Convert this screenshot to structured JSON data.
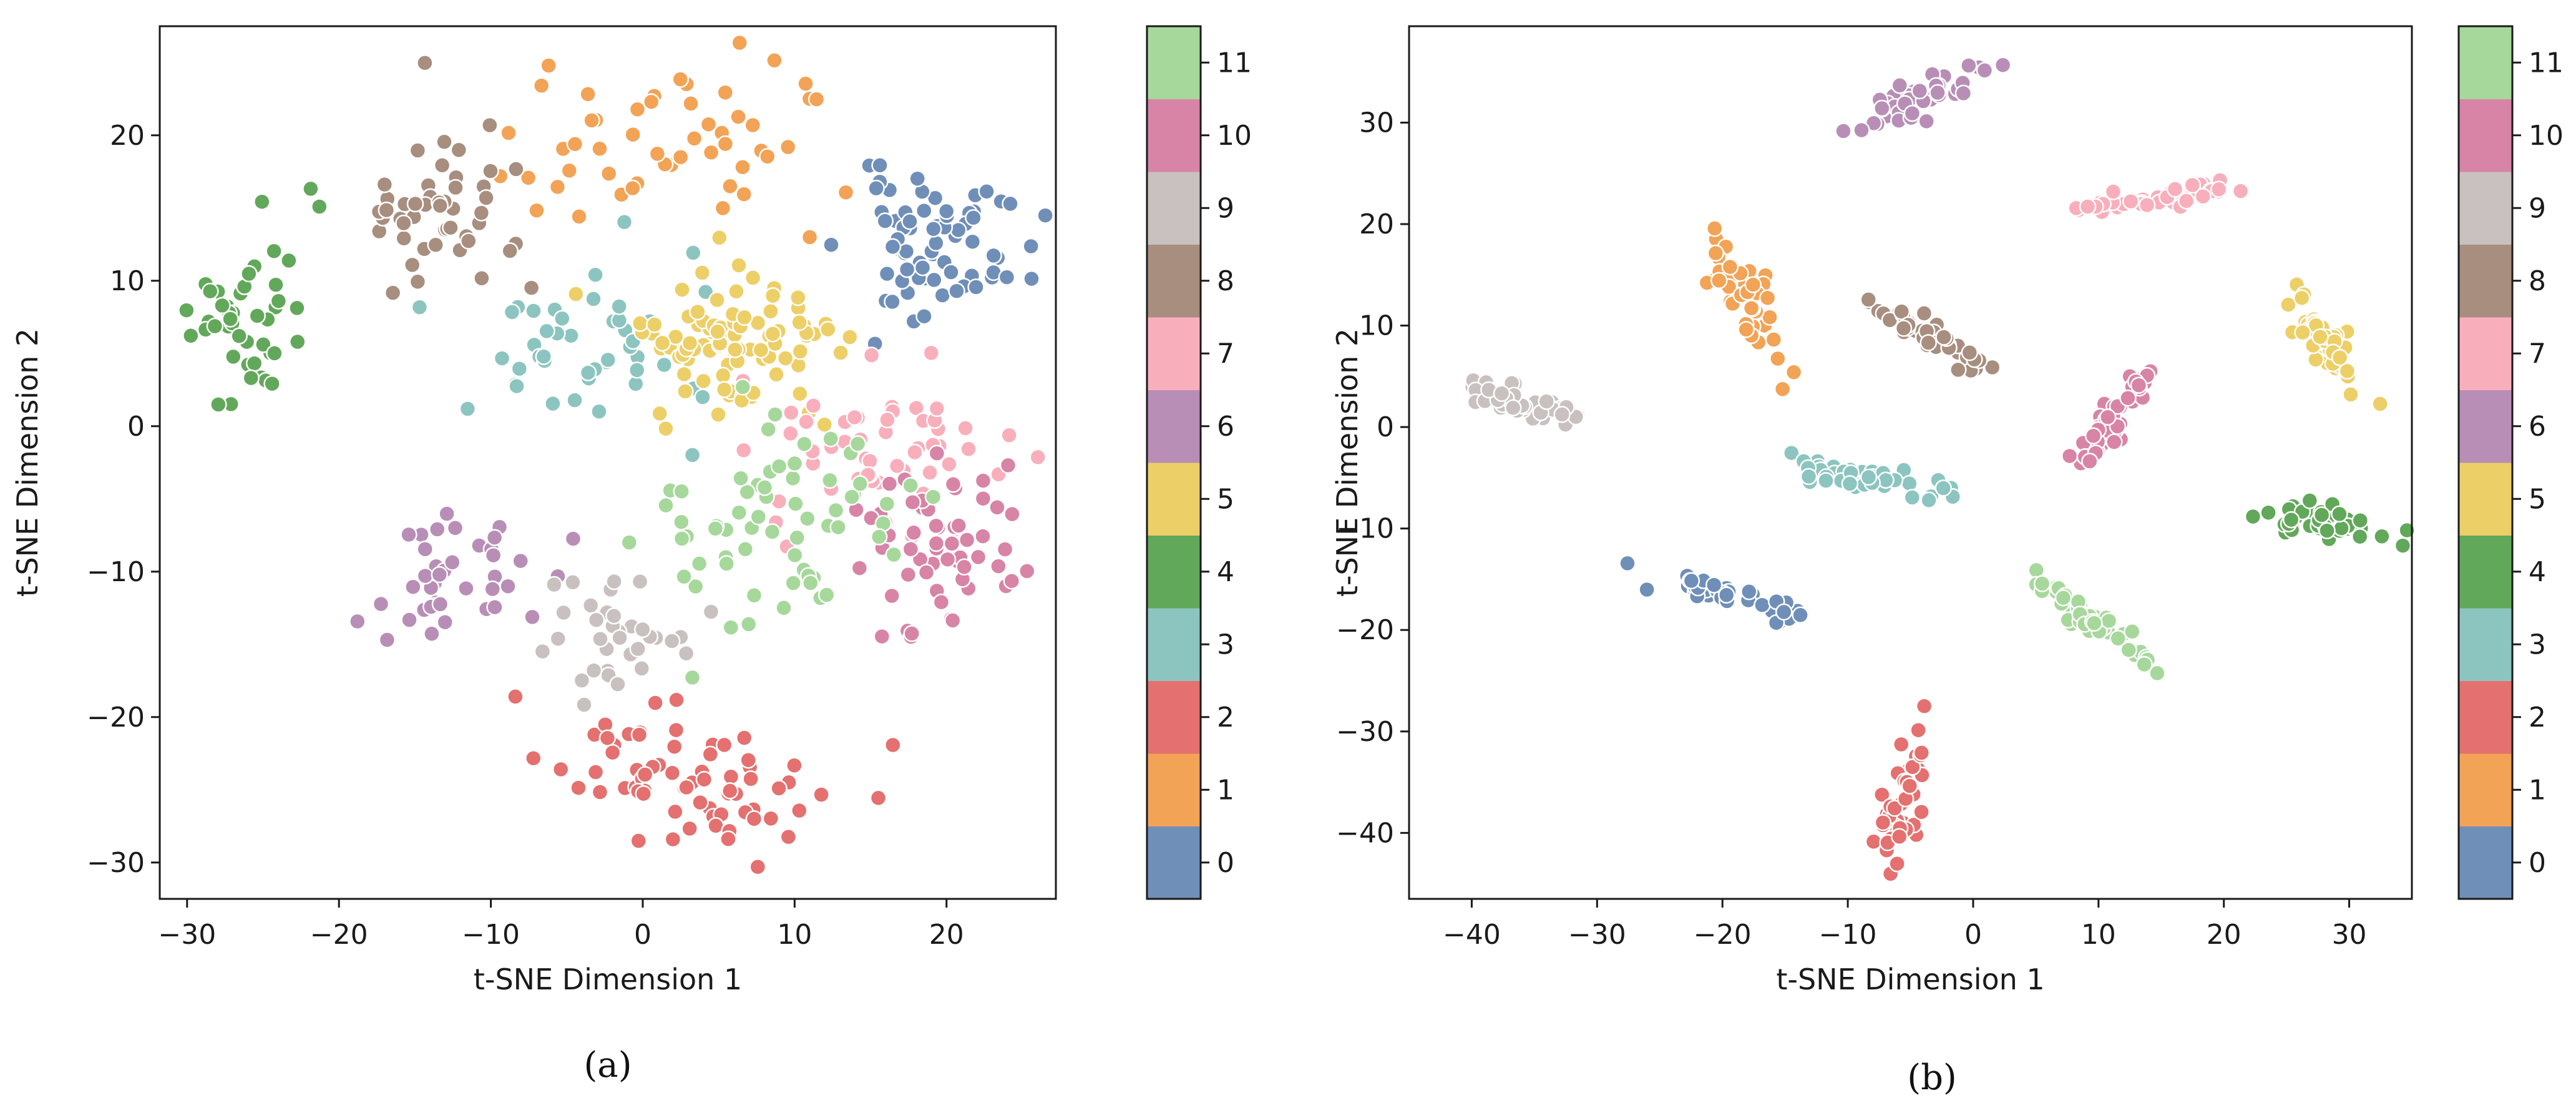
{
  "colormap": {
    "name": "Set3-like",
    "colors": [
      "#6f8fb8",
      "#f2a356",
      "#e4706f",
      "#8cc5c0",
      "#62a85a",
      "#edcf68",
      "#b88eb6",
      "#f9afbb",
      "#a88e7f",
      "#c9c1bf",
      "#d884a6",
      "#a6d89b"
    ],
    "labels": [
      "0",
      "1",
      "2",
      "3",
      "4",
      "5",
      "6",
      "7",
      "8",
      "9",
      "10",
      "11"
    ]
  },
  "chart_data": [
    {
      "type": "scatter",
      "caption": "(a)",
      "xlabel": "t-SNE Dimension 1",
      "ylabel": "t-SNE Dimension 2",
      "xlim": [
        -31.8,
        27.2
      ],
      "ylim": [
        -32.5,
        27.5
      ],
      "xticks": [
        -30,
        -20,
        -10,
        0,
        10,
        20
      ],
      "yticks": [
        -30,
        -20,
        -10,
        0,
        10,
        20
      ],
      "colorbar_ticks": [
        "0",
        "1",
        "2",
        "3",
        "4",
        "5",
        "6",
        "7",
        "8",
        "9",
        "10",
        "11"
      ],
      "seed": 11,
      "clusters": [
        {
          "class": 0,
          "cx": 19.5,
          "cy": 12.5,
          "sx": 3.0,
          "sy": 2.4,
          "rot": 0,
          "n": 70
        },
        {
          "class": 1,
          "cx": 0.5,
          "cy": 19.0,
          "sx": 4.8,
          "sy": 3.0,
          "rot": 0,
          "n": 52
        },
        {
          "class": 2,
          "cx": 3.0,
          "cy": -24.0,
          "sx": 4.5,
          "sy": 2.2,
          "rot": -8,
          "n": 70
        },
        {
          "class": 3,
          "cx": -4.0,
          "cy": 5.0,
          "sx": 4.3,
          "sy": 4.2,
          "rot": 0,
          "n": 48
        },
        {
          "class": 4,
          "cx": -25.8,
          "cy": 7.0,
          "sx": 1.9,
          "sy": 2.7,
          "rot": 0,
          "n": 45
        },
        {
          "class": 5,
          "cx": 6.0,
          "cy": 5.5,
          "sx": 3.0,
          "sy": 2.5,
          "rot": 0,
          "n": 90
        },
        {
          "class": 6,
          "cx": -13.5,
          "cy": -10.0,
          "sx": 3.6,
          "sy": 2.0,
          "rot": 20,
          "n": 40
        },
        {
          "class": 7,
          "cx": 16.5,
          "cy": -1.0,
          "sx": 4.8,
          "sy": 3.0,
          "rot": 0,
          "n": 55
        },
        {
          "class": 8,
          "cx": -13.3,
          "cy": 15.5,
          "sx": 2.6,
          "sy": 3.0,
          "rot": 0,
          "n": 48
        },
        {
          "class": 9,
          "cx": -1.5,
          "cy": -14.5,
          "sx": 3.0,
          "sy": 2.7,
          "rot": 0,
          "n": 35
        },
        {
          "class": 10,
          "cx": 19.5,
          "cy": -7.5,
          "sx": 2.9,
          "sy": 3.0,
          "rot": 0,
          "n": 60
        },
        {
          "class": 11,
          "cx": 8.5,
          "cy": -7.0,
          "sx": 4.2,
          "sy": 4.0,
          "rot": 0,
          "n": 65
        }
      ]
    },
    {
      "type": "scatter",
      "caption": "(b)",
      "xlabel": "t-SNE Dimension 1",
      "ylabel": "t-SNE Dimension 2",
      "xlim": [
        -45.0,
        35.0
      ],
      "ylim": [
        -46.5,
        39.5
      ],
      "xticks": [
        -40,
        -30,
        -20,
        -10,
        0,
        10,
        20,
        30
      ],
      "yticks": [
        -40,
        -30,
        -20,
        -10,
        0,
        10,
        20,
        30
      ],
      "colorbar_ticks": [
        "0",
        "1",
        "2",
        "3",
        "4",
        "5",
        "6",
        "7",
        "8",
        "9",
        "10",
        "11"
      ],
      "seed": 29,
      "clusters": [
        {
          "class": 0,
          "cx": -19.5,
          "cy": -16.5,
          "sx": 3.5,
          "sy": 0.6,
          "rot": -22,
          "n": 45
        },
        {
          "class": 1,
          "cx": -18.5,
          "cy": 13.5,
          "sx": 3.5,
          "sy": 0.9,
          "rot": -68,
          "n": 45
        },
        {
          "class": 2,
          "cx": -5.5,
          "cy": -36.0,
          "sx": 3.9,
          "sy": 0.7,
          "rot": 80,
          "n": 45
        },
        {
          "class": 3,
          "cx": -8.0,
          "cy": -5.0,
          "sx": 3.6,
          "sy": 0.6,
          "rot": -10,
          "n": 45
        },
        {
          "class": 4,
          "cx": 28.0,
          "cy": -9.5,
          "sx": 2.5,
          "sy": 0.8,
          "rot": -18,
          "n": 45
        },
        {
          "class": 5,
          "cx": 28.0,
          "cy": 8.5,
          "sx": 3.0,
          "sy": 0.7,
          "rot": -60,
          "n": 45
        },
        {
          "class": 6,
          "cx": -4.5,
          "cy": 32.5,
          "sx": 2.8,
          "sy": 0.8,
          "rot": 30,
          "n": 45
        },
        {
          "class": 7,
          "cx": 14.5,
          "cy": 22.5,
          "sx": 3.2,
          "sy": 0.5,
          "rot": 8,
          "n": 45
        },
        {
          "class": 8,
          "cx": -3.5,
          "cy": 9.0,
          "sx": 3.0,
          "sy": 0.6,
          "rot": -35,
          "n": 45
        },
        {
          "class": 9,
          "cx": -36.5,
          "cy": 2.5,
          "sx": 2.5,
          "sy": 0.7,
          "rot": -18,
          "n": 45
        },
        {
          "class": 10,
          "cx": 11.0,
          "cy": 0.5,
          "sx": 3.2,
          "sy": 0.6,
          "rot": 60,
          "n": 45
        },
        {
          "class": 11,
          "cx": 9.5,
          "cy": -19.0,
          "sx": 2.8,
          "sy": 0.6,
          "rot": -40,
          "n": 45
        }
      ]
    }
  ]
}
